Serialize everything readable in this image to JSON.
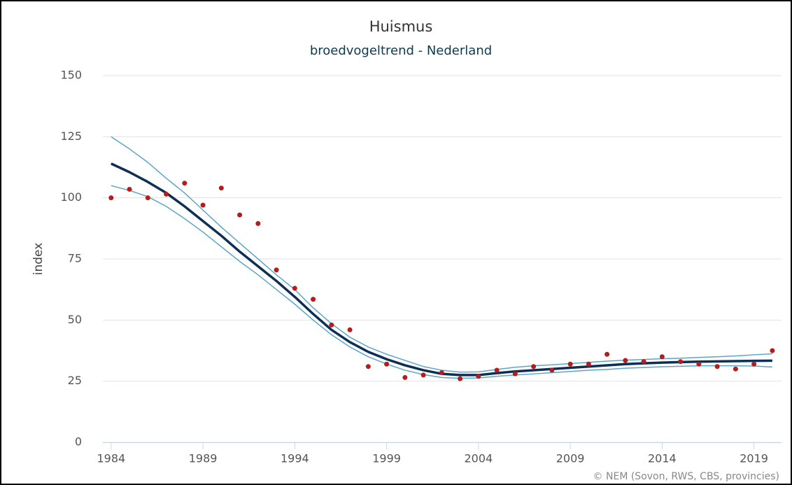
{
  "chart_data": {
    "type": "line",
    "title": "Huismus",
    "subtitle": "broedvogeltrend - Nederland",
    "y_label": "index",
    "credit": "© NEM (Sovon, RWS, CBS, provincies)",
    "x": [
      1984,
      1985,
      1986,
      1987,
      1988,
      1989,
      1990,
      1991,
      1992,
      1993,
      1994,
      1995,
      1996,
      1997,
      1998,
      1999,
      2000,
      2001,
      2002,
      2003,
      2004,
      2005,
      2006,
      2007,
      2008,
      2009,
      2010,
      2011,
      2012,
      2013,
      2014,
      2015,
      2016,
      2017,
      2018,
      2019,
      2020
    ],
    "series": [
      {
        "style": "line",
        "width": 1.5,
        "color": "#5aa6c8",
        "values": [
          125,
          120,
          114.5,
          108,
          102,
          95,
          88,
          81.5,
          75,
          68.5,
          62.5,
          55,
          48.5,
          43,
          39,
          36,
          33.5,
          31,
          29.5,
          28.7,
          28.8,
          29.8,
          30.7,
          31.3,
          31.7,
          32.2,
          32.7,
          33.2,
          33.6,
          33.9,
          34.2,
          34.4,
          34.7,
          35,
          35.3,
          35.8,
          36.2
        ]
      },
      {
        "style": "line",
        "width": 1.5,
        "color": "#5aa6c8",
        "values": [
          105,
          103,
          100.5,
          96.5,
          91.5,
          86,
          80,
          74,
          68.5,
          62.5,
          56.5,
          50,
          44,
          39,
          35,
          32,
          29.5,
          27.7,
          26.5,
          26.2,
          26.3,
          27,
          27.5,
          28,
          28.5,
          29,
          29.5,
          29.8,
          30.3,
          30.6,
          30.9,
          31.1,
          31.3,
          31.3,
          31.3,
          31.2,
          30.8
        ]
      },
      {
        "style": "line",
        "width": 3.5,
        "color": "#0d2f55",
        "values": [
          114,
          110.5,
          106.5,
          102,
          96.5,
          90.5,
          84.5,
          78,
          72,
          66,
          59.5,
          52.5,
          46,
          41,
          37,
          34,
          31.5,
          29.5,
          28,
          27.5,
          27.5,
          28.3,
          29,
          29.5,
          30,
          30.5,
          31,
          31.5,
          32,
          32.3,
          32.6,
          32.8,
          33,
          33.1,
          33.2,
          33.3,
          33.4
        ]
      },
      {
        "style": "markers",
        "color": "#b51c1c",
        "values": [
          100,
          103.5,
          100,
          101.5,
          106,
          97,
          104,
          93,
          89.5,
          70.5,
          63,
          58.5,
          48,
          46,
          31,
          32,
          26.5,
          27.5,
          28.5,
          26,
          27,
          29.5,
          28,
          31,
          29.5,
          32,
          32,
          36,
          33.5,
          33,
          35,
          33,
          32,
          31,
          30,
          32,
          37.5
        ]
      }
    ],
    "xlim": [
      1983.55,
      2020.5
    ],
    "xticks": [
      1984,
      1989,
      1994,
      1999,
      2004,
      2009,
      2014,
      2019
    ],
    "ylim": [
      0,
      150
    ],
    "yticks": [
      0,
      25,
      50,
      75,
      100,
      125,
      150
    ],
    "grid": true
  }
}
